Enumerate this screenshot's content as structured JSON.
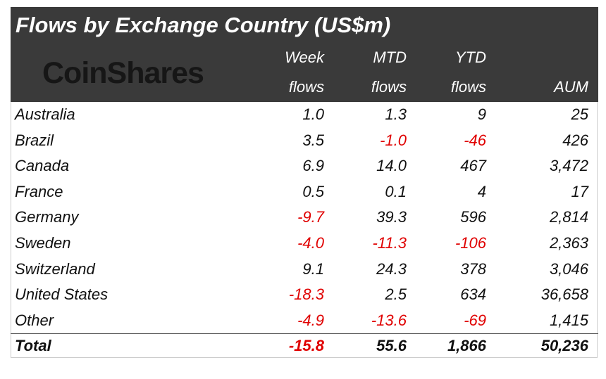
{
  "header": {
    "title": "Flows by Exchange Country (US$m)",
    "logo": "CoinShares"
  },
  "table": {
    "columns": [
      [
        "Week",
        "flows"
      ],
      [
        "MTD",
        "flows"
      ],
      [
        "YTD",
        "flows"
      ],
      [
        "AUM"
      ]
    ],
    "rows": [
      [
        "Australia",
        "1.0",
        "1.3",
        "9",
        "25"
      ],
      [
        "Brazil",
        "3.5",
        "-1.0",
        "-46",
        "426"
      ],
      [
        "Canada",
        "6.9",
        "14.0",
        "467",
        "3,472"
      ],
      [
        "France",
        "0.5",
        "0.1",
        "4",
        "17"
      ],
      [
        "Germany",
        "-9.7",
        "39.3",
        "596",
        "2,814"
      ],
      [
        "Sweden",
        "-4.0",
        "-11.3",
        "-106",
        "2,363"
      ],
      [
        "Switzerland",
        "9.1",
        "24.3",
        "378",
        "3,046"
      ],
      [
        "United States",
        "-18.3",
        "2.5",
        "634",
        "36,658"
      ],
      [
        "Other",
        "-4.9",
        "-13.6",
        "-69",
        "1,415"
      ]
    ],
    "total": [
      "Total",
      "-15.8",
      "55.6",
      "1,866",
      "50,236"
    ]
  }
}
